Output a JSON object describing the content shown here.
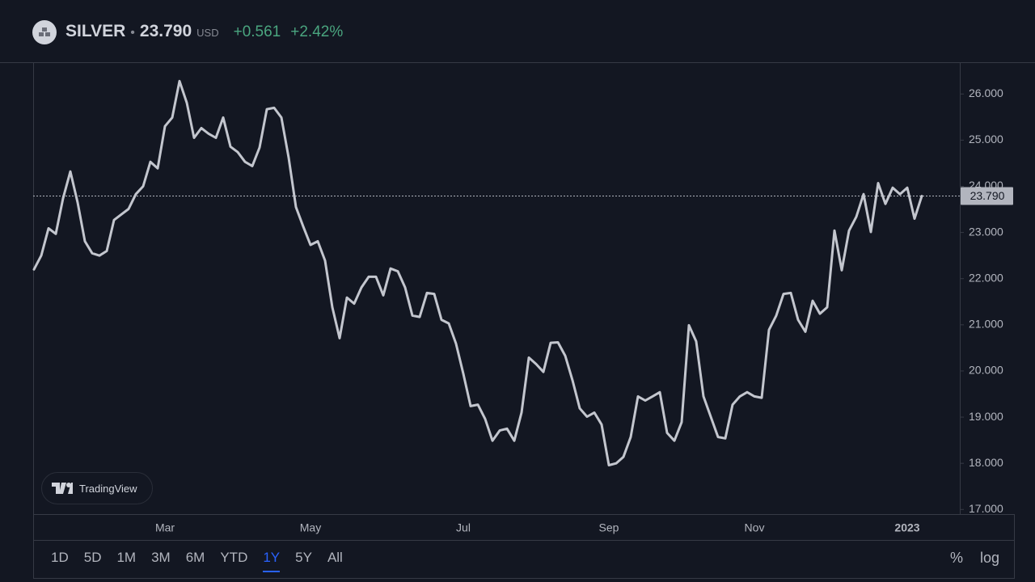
{
  "header": {
    "symbol": "SILVER",
    "separator": "•",
    "price": "23.790",
    "currency": "USD",
    "change": "+0.561",
    "change_percent": "+2.42%"
  },
  "branding": "TradingView",
  "controls": {
    "ranges": [
      "1D",
      "5D",
      "1M",
      "3M",
      "6M",
      "YTD",
      "1Y",
      "5Y",
      "All"
    ],
    "active_range": 6,
    "scale_buttons": [
      "%",
      "log"
    ]
  },
  "chart_data": {
    "type": "line",
    "color": "#c3c6ce",
    "grid": false,
    "categories": [
      null,
      null,
      null,
      null,
      null,
      null,
      null,
      null,
      null,
      null,
      null,
      null,
      null,
      null,
      null,
      null,
      null,
      null,
      "Mar",
      null,
      null,
      null,
      null,
      null,
      null,
      null,
      null,
      null,
      null,
      null,
      null,
      null,
      null,
      null,
      null,
      null,
      null,
      null,
      "May",
      null,
      null,
      null,
      null,
      null,
      null,
      null,
      null,
      null,
      null,
      null,
      null,
      null,
      null,
      null,
      null,
      null,
      null,
      null,
      null,
      "Jul",
      null,
      null,
      null,
      null,
      null,
      null,
      null,
      null,
      null,
      null,
      null,
      null,
      null,
      null,
      null,
      null,
      null,
      null,
      null,
      "Sep",
      null,
      null,
      null,
      null,
      null,
      null,
      null,
      null,
      null,
      null,
      null,
      null,
      null,
      null,
      null,
      null,
      null,
      null,
      null,
      "Nov",
      null,
      null,
      null,
      null,
      null,
      null,
      null,
      null,
      null,
      null,
      null,
      null,
      null,
      null,
      null,
      null,
      null,
      null,
      null,
      null,
      "2023",
      null,
      null
    ],
    "values": [
      22.2,
      22.5,
      23.09,
      22.97,
      23.74,
      24.32,
      23.65,
      22.81,
      22.55,
      22.5,
      22.6,
      23.27,
      23.39,
      23.51,
      23.83,
      24.0,
      24.53,
      24.39,
      25.3,
      25.49,
      26.28,
      25.81,
      25.05,
      25.26,
      25.14,
      25.05,
      25.49,
      24.86,
      24.74,
      24.53,
      24.44,
      24.84,
      25.67,
      25.7,
      25.49,
      24.62,
      23.55,
      23.13,
      22.73,
      22.81,
      22.39,
      21.38,
      20.71,
      21.59,
      21.46,
      21.81,
      22.04,
      22.04,
      21.64,
      22.22,
      22.16,
      21.81,
      21.2,
      21.17,
      21.69,
      21.67,
      21.11,
      21.03,
      20.59,
      19.94,
      19.24,
      19.27,
      18.96,
      18.49,
      18.71,
      18.75,
      18.49,
      19.1,
      20.29,
      20.15,
      19.98,
      20.61,
      20.62,
      20.33,
      19.8,
      19.19,
      19.01,
      19.1,
      18.84,
      17.96,
      18.0,
      18.14,
      18.57,
      19.45,
      19.36,
      19.45,
      19.54,
      18.66,
      18.49,
      18.89,
      20.99,
      20.64,
      19.45,
      19.01,
      18.57,
      18.54,
      19.27,
      19.45,
      19.54,
      19.45,
      19.42,
      20.89,
      21.2,
      21.67,
      21.69,
      21.11,
      20.85,
      21.52,
      21.24,
      21.38,
      23.04,
      22.18,
      23.04,
      23.34,
      23.83,
      23.01,
      24.07,
      23.62,
      23.97,
      23.83,
      23.97,
      23.3,
      23.79
    ],
    "ylim": [
      16.9,
      26.67
    ],
    "yticks": [
      {
        "value": 17,
        "label": "17.000"
      },
      {
        "value": 18,
        "label": "18.000"
      },
      {
        "value": 19,
        "label": "19.000"
      },
      {
        "value": 20,
        "label": "20.000"
      },
      {
        "value": 21,
        "label": "21.000"
      },
      {
        "value": 22,
        "label": "22.000"
      },
      {
        "value": 23,
        "label": "23.000"
      },
      {
        "value": 24,
        "label": "24.000"
      },
      {
        "value": 25,
        "label": "25.000"
      },
      {
        "value": 26,
        "label": "26.000"
      }
    ],
    "price_line": {
      "value": 23.79,
      "label": "23.790"
    }
  }
}
